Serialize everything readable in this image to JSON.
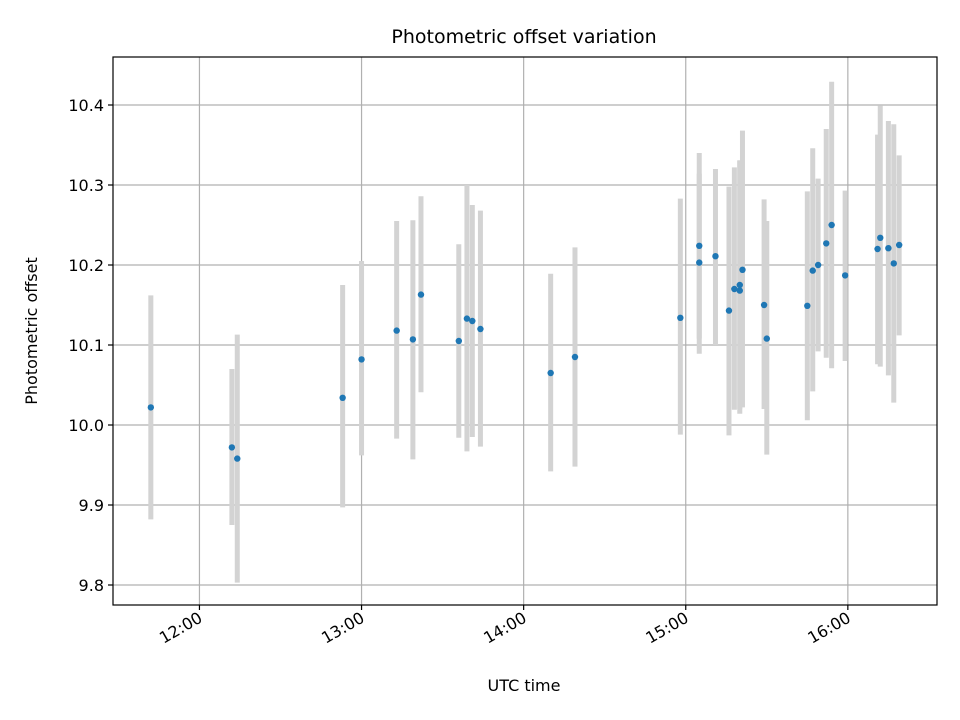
{
  "chart_data": {
    "type": "scatter",
    "title": "Photometric offset variation",
    "xlabel": "UTC time",
    "ylabel": "Photometric offset",
    "xlim": [
      "11:28",
      "16:33"
    ],
    "ylim": [
      9.775,
      10.46
    ],
    "x_ticks": [
      "12:00",
      "13:00",
      "14:00",
      "15:00",
      "16:00"
    ],
    "y_ticks": [
      9.8,
      9.9,
      10.0,
      10.1,
      10.2,
      10.3,
      10.4
    ],
    "grid": true,
    "colors": {
      "point": "#1f77b4",
      "errorbar": "#d3d3d3",
      "grid": "#b0b0b0"
    },
    "series": [
      {
        "points": [
          {
            "time": "11:42",
            "y": 10.022,
            "ylo": 9.882,
            "yhi": 10.162
          },
          {
            "time": "12:12",
            "y": 9.972,
            "ylo": 9.875,
            "yhi": 10.07
          },
          {
            "time": "12:14",
            "y": 9.958,
            "ylo": 9.803,
            "yhi": 10.113
          },
          {
            "time": "12:53",
            "y": 10.034,
            "ylo": 9.897,
            "yhi": 10.175
          },
          {
            "time": "13:00",
            "y": 10.082,
            "ylo": 9.962,
            "yhi": 10.205
          },
          {
            "time": "13:13",
            "y": 10.118,
            "ylo": 9.983,
            "yhi": 10.255
          },
          {
            "time": "13:19",
            "y": 10.107,
            "ylo": 9.957,
            "yhi": 10.256
          },
          {
            "time": "13:22",
            "y": 10.163,
            "ylo": 10.041,
            "yhi": 10.286
          },
          {
            "time": "13:36",
            "y": 10.105,
            "ylo": 9.984,
            "yhi": 10.226
          },
          {
            "time": "13:39",
            "y": 10.133,
            "ylo": 9.967,
            "yhi": 10.3
          },
          {
            "time": "13:41",
            "y": 10.13,
            "ylo": 9.985,
            "yhi": 10.275
          },
          {
            "time": "13:44",
            "y": 10.12,
            "ylo": 9.973,
            "yhi": 10.268
          },
          {
            "time": "14:10",
            "y": 10.065,
            "ylo": 9.942,
            "yhi": 10.189
          },
          {
            "time": "14:19",
            "y": 10.085,
            "ylo": 9.948,
            "yhi": 10.222
          },
          {
            "time": "14:58",
            "y": 10.134,
            "ylo": 9.988,
            "yhi": 10.283
          },
          {
            "time": "15:05",
            "y": 10.224,
            "ylo": 10.108,
            "yhi": 10.34
          },
          {
            "time": "15:05",
            "y": 10.203,
            "ylo": 10.089,
            "yhi": 10.314
          },
          {
            "time": "15:11",
            "y": 10.211,
            "ylo": 10.1,
            "yhi": 10.32
          },
          {
            "time": "15:16",
            "y": 10.143,
            "ylo": 9.987,
            "yhi": 10.298
          },
          {
            "time": "15:18",
            "y": 10.17,
            "ylo": 10.019,
            "yhi": 10.322
          },
          {
            "time": "15:20",
            "y": 10.168,
            "ylo": 10.014,
            "yhi": 10.331
          },
          {
            "time": "15:20",
            "y": 10.175,
            "ylo": 10.02,
            "yhi": 10.33
          },
          {
            "time": "15:21",
            "y": 10.194,
            "ylo": 10.022,
            "yhi": 10.368
          },
          {
            "time": "15:29",
            "y": 10.15,
            "ylo": 10.02,
            "yhi": 10.282
          },
          {
            "time": "15:30",
            "y": 10.108,
            "ylo": 9.963,
            "yhi": 10.255
          },
          {
            "time": "15:45",
            "y": 10.149,
            "ylo": 10.006,
            "yhi": 10.292
          },
          {
            "time": "15:47",
            "y": 10.193,
            "ylo": 10.042,
            "yhi": 10.346
          },
          {
            "time": "15:49",
            "y": 10.2,
            "ylo": 10.092,
            "yhi": 10.308
          },
          {
            "time": "15:52",
            "y": 10.227,
            "ylo": 10.084,
            "yhi": 10.37
          },
          {
            "time": "15:54",
            "y": 10.25,
            "ylo": 10.071,
            "yhi": 10.429
          },
          {
            "time": "15:59",
            "y": 10.187,
            "ylo": 10.08,
            "yhi": 10.293
          },
          {
            "time": "16:11",
            "y": 10.22,
            "ylo": 10.076,
            "yhi": 10.363
          },
          {
            "time": "16:12",
            "y": 10.234,
            "ylo": 10.073,
            "yhi": 10.399
          },
          {
            "time": "16:15",
            "y": 10.221,
            "ylo": 10.062,
            "yhi": 10.38
          },
          {
            "time": "16:17",
            "y": 10.202,
            "ylo": 10.028,
            "yhi": 10.376
          },
          {
            "time": "16:19",
            "y": 10.225,
            "ylo": 10.112,
            "yhi": 10.337
          }
        ]
      }
    ]
  }
}
